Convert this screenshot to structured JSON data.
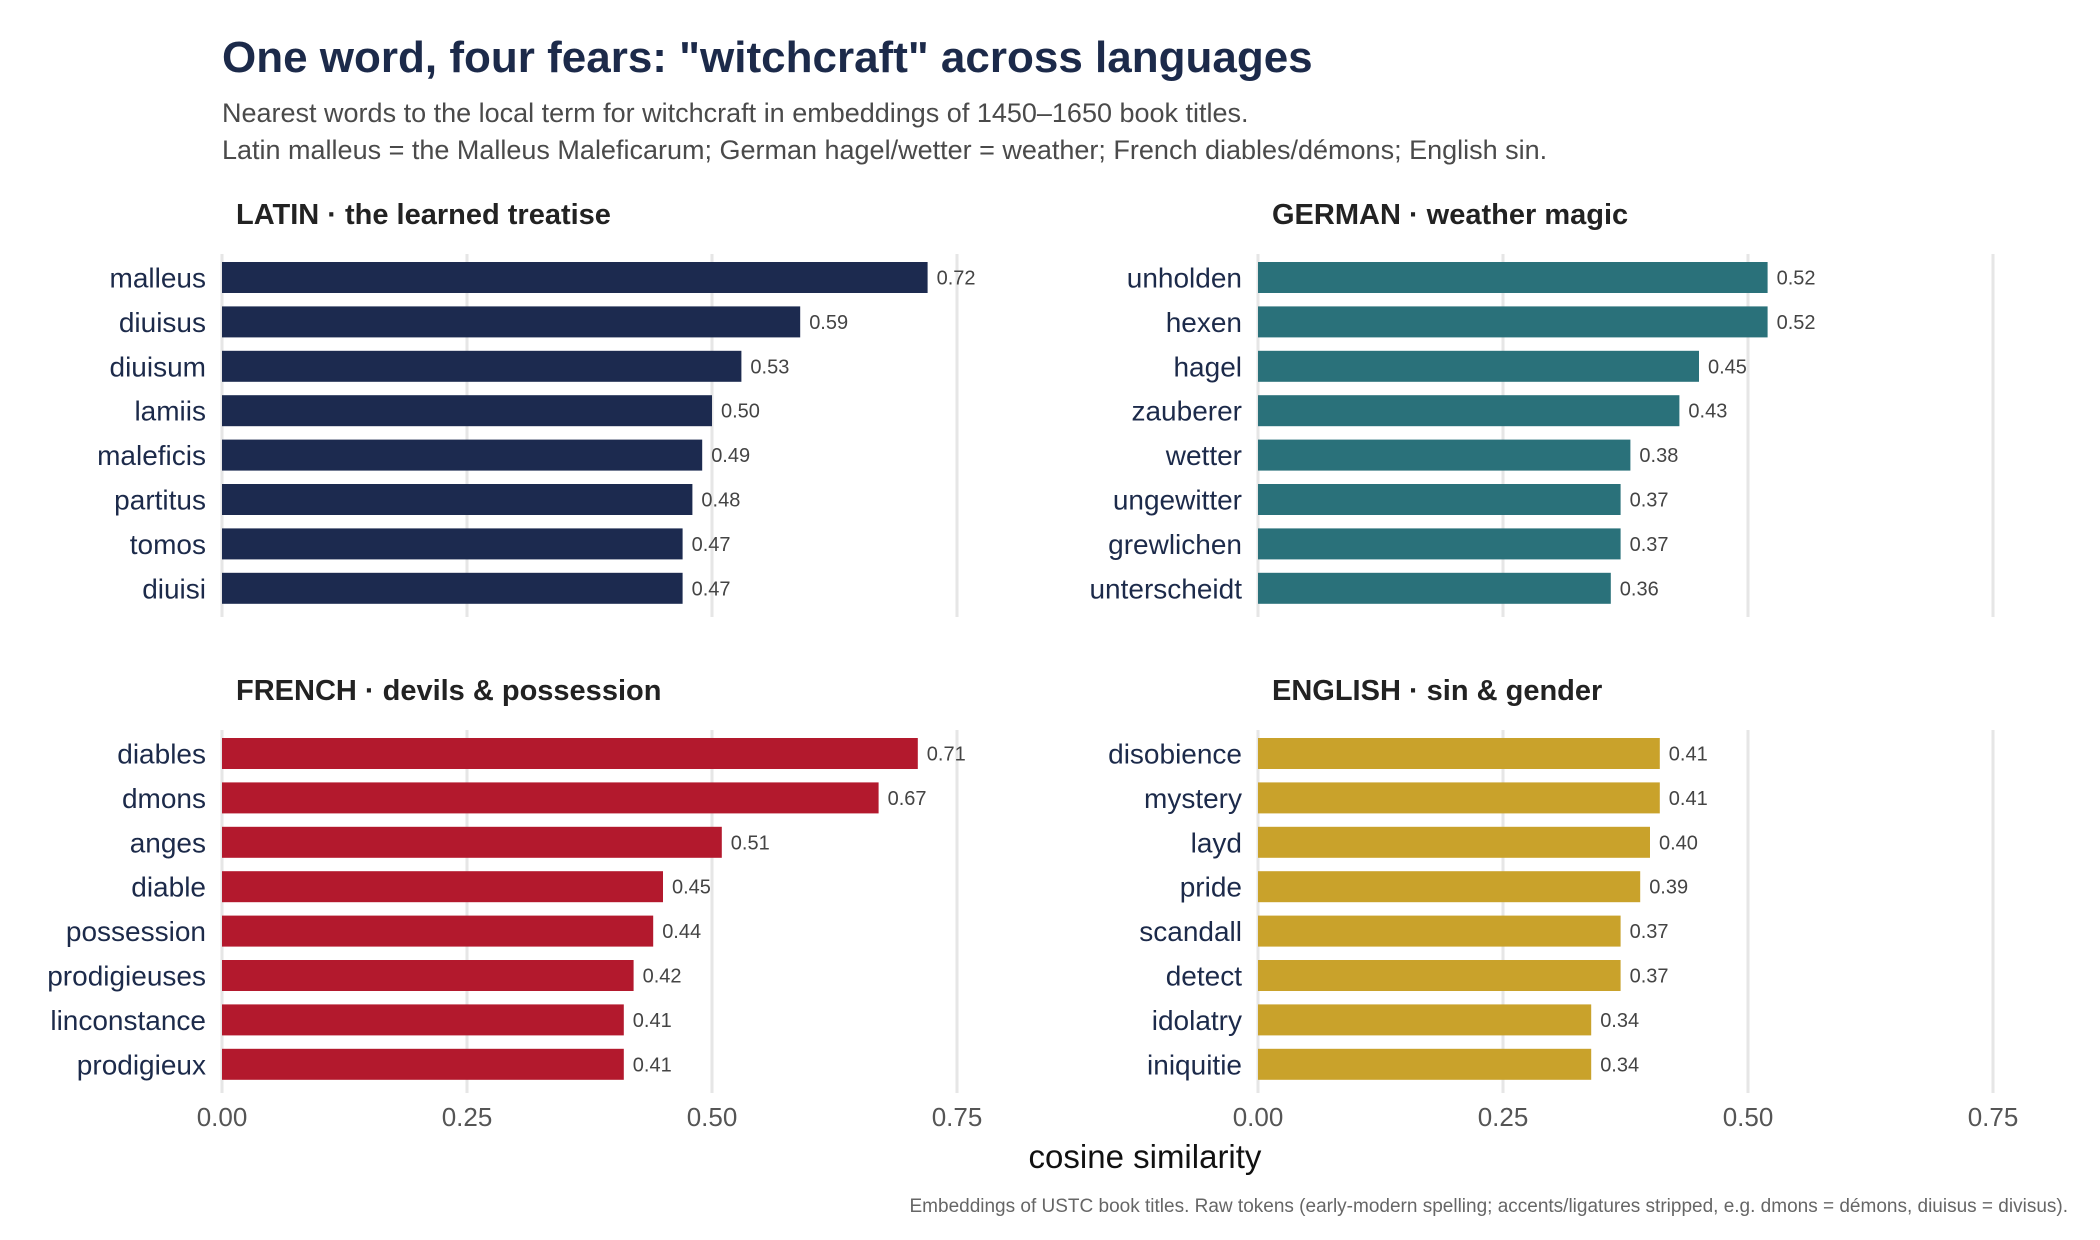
{
  "title": "One word, four fears: \"witchcraft\" across languages",
  "subtitle_lines": [
    "Nearest words to the local term for witchcraft in embeddings of 1450–1650 book titles.",
    "Latin malleus = the Malleus Maleficarum; German hagel/wetter = weather; French diables/démons; English sin."
  ],
  "xlabel": "cosine similarity",
  "caption": "Embeddings of USTC book titles. Raw tokens (early-modern spelling; accents/ligatures stripped, e.g. dmons = démons, diuisus = divisus).",
  "chart_data": {
    "type": "bar",
    "orientation": "horizontal",
    "xlabel": "cosine similarity",
    "xlim": [
      0,
      0.75
    ],
    "x_ticks": [
      "0.00",
      "0.25",
      "0.50",
      "0.75"
    ],
    "grid": true,
    "panels": [
      {
        "title": "LATIN · the learned treatise",
        "color": "#1c2a4f",
        "categories": [
          "malleus",
          "diuisus",
          "diuisum",
          "lamiis",
          "maleficis",
          "partitus",
          "tomos",
          "diuisi"
        ],
        "values": [
          0.72,
          0.59,
          0.53,
          0.5,
          0.49,
          0.48,
          0.47,
          0.47
        ]
      },
      {
        "title": "GERMAN · weather magic",
        "color": "#2a717a",
        "categories": [
          "unholden",
          "hexen",
          "hagel",
          "zauberer",
          "wetter",
          "ungewitter",
          "grewlichen",
          "unterscheidt"
        ],
        "values": [
          0.52,
          0.52,
          0.45,
          0.43,
          0.38,
          0.37,
          0.37,
          0.36
        ]
      },
      {
        "title": "FRENCH · devils & possession",
        "color": "#b3192d",
        "categories": [
          "diables",
          "dmons",
          "anges",
          "diable",
          "possession",
          "prodigieuses",
          "linconstance",
          "prodigieux"
        ],
        "values": [
          0.71,
          0.67,
          0.51,
          0.45,
          0.44,
          0.42,
          0.41,
          0.41
        ]
      },
      {
        "title": "ENGLISH · sin & gender",
        "color": "#c9a22b",
        "categories": [
          "disobience",
          "mystery",
          "layd",
          "pride",
          "scandall",
          "detect",
          "idolatry",
          "iniquitie"
        ],
        "values": [
          0.41,
          0.41,
          0.4,
          0.39,
          0.37,
          0.37,
          0.34,
          0.34
        ]
      }
    ]
  }
}
